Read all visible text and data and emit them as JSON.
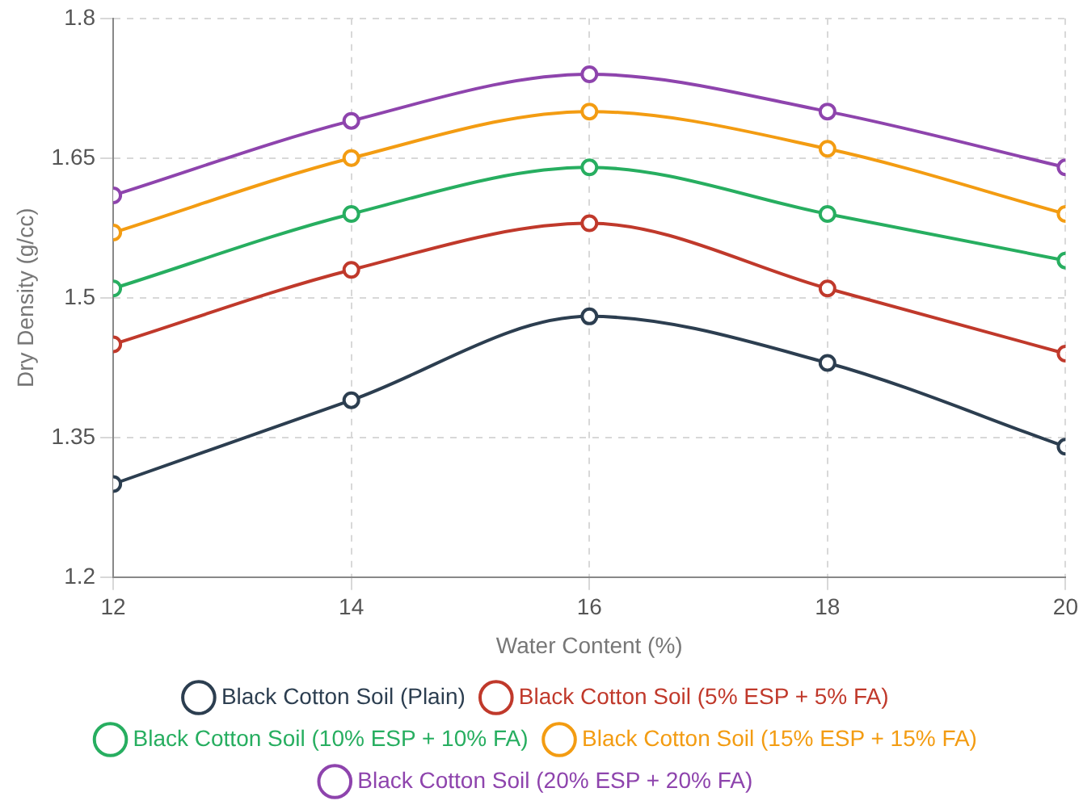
{
  "chart_data": {
    "type": "line",
    "xlabel": "Water Content (%)",
    "ylabel": "Dry Density (g/cc)",
    "x": [
      12,
      14,
      16,
      18,
      20
    ],
    "xlim": [
      12,
      20
    ],
    "xticks": [
      12,
      14,
      16,
      18,
      20
    ],
    "ylim": [
      1.2,
      1.8
    ],
    "yticks": [
      1.2,
      1.35,
      1.5,
      1.65,
      1.8
    ],
    "grid": true,
    "legend": "bottom",
    "marker": "circle",
    "line_style": "solid",
    "series": [
      {
        "name": "Black Cotton Soil (Plain)",
        "color": "#2c3e50",
        "values": [
          1.3,
          1.39,
          1.48,
          1.43,
          1.34
        ]
      },
      {
        "name": "Black Cotton Soil (5% ESP + 5% FA)",
        "color": "#c0392b",
        "values": [
          1.45,
          1.53,
          1.58,
          1.51,
          1.44
        ]
      },
      {
        "name": "Black Cotton Soil (10% ESP + 10% FA)",
        "color": "#27ae60",
        "values": [
          1.51,
          1.59,
          1.64,
          1.59,
          1.54
        ]
      },
      {
        "name": "Black Cotton Soil (15% ESP + 15% FA)",
        "color": "#f39c12",
        "values": [
          1.57,
          1.65,
          1.7,
          1.66,
          1.59
        ]
      },
      {
        "name": "Black Cotton Soil (20% ESP + 20% FA)",
        "color": "#8e44ad",
        "values": [
          1.61,
          1.69,
          1.74,
          1.7,
          1.64
        ]
      }
    ]
  }
}
